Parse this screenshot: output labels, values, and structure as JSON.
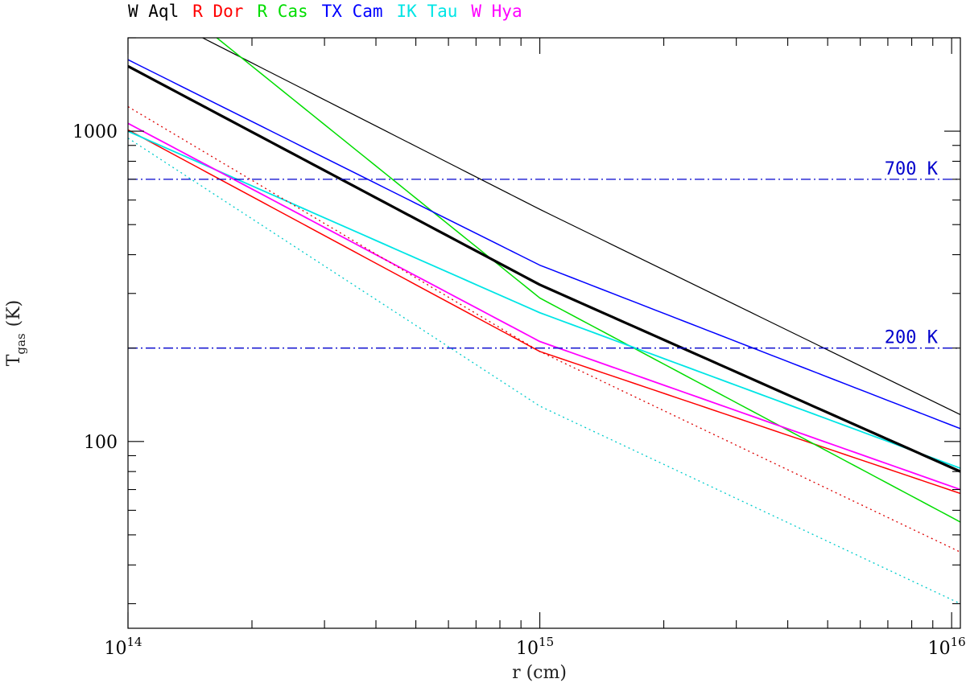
{
  "chart_data": {
    "type": "line",
    "xscale": "log",
    "yscale": "log",
    "xlim": [
      100000000000000.0,
      1.05e+16
    ],
    "ylim": [
      25,
      2000
    ],
    "xlabel": "r (cm)",
    "ylabel": {
      "main": "T",
      "sub": "gas",
      "unit": "(K)"
    },
    "x_ticks": [
      {
        "base": "10",
        "exp": "14",
        "value": 100000000000000.0
      },
      {
        "base": "10",
        "exp": "15",
        "value": 1000000000000000.0
      },
      {
        "base": "10",
        "exp": "16",
        "value": 1e+16
      }
    ],
    "y_ticks": [
      {
        "label": "100",
        "value": 100
      },
      {
        "label": "1000",
        "value": 1000
      }
    ],
    "legend": [
      {
        "label": "W Aql",
        "color": "#000000"
      },
      {
        "label": "R Dor",
        "color": "#ff0000"
      },
      {
        "label": "R Cas",
        "color": "#00dd00"
      },
      {
        "label": "TX Cam",
        "color": "#0000ff"
      },
      {
        "label": "IK Tau",
        "color": "#00e5e5"
      },
      {
        "label": "W Hya",
        "color": "#ff00ff"
      }
    ],
    "reference_lines": [
      {
        "label": "700 K",
        "y": 700,
        "color": "#0000cc",
        "style": "dashdot"
      },
      {
        "label": "200 K",
        "y": 200,
        "color": "#0000cc",
        "style": "dashdot"
      }
    ],
    "series": [
      {
        "legend": "W Aql",
        "color": "#000000",
        "width": 1.2,
        "style": "solid",
        "x": [
          100000000000000.0,
          1000000000000000.0,
          1.05e+16
        ],
        "y": [
          2650,
          560,
          122
        ]
      },
      {
        "legend": "R Dor",
        "color": "#ff0000",
        "width": 1.5,
        "style": "solid",
        "x": [
          100000000000000.0,
          1000000000000000.0,
          1.05e+16
        ],
        "y": [
          1010,
          195,
          68
        ]
      },
      {
        "legend": "R Cas",
        "color": "#00dd00",
        "width": 1.5,
        "style": "solid",
        "x": [
          100000000000000.0,
          1000000000000000.0,
          1.05e+16
        ],
        "y": [
          3400,
          290,
          55
        ]
      },
      {
        "legend": "TX Cam",
        "color": "#0000ff",
        "width": 1.5,
        "style": "solid",
        "x": [
          100000000000000.0,
          1000000000000000.0,
          1.05e+16
        ],
        "y": [
          1700,
          370,
          110
        ]
      },
      {
        "legend": "IK Tau",
        "color": "#00e5e5",
        "width": 1.8,
        "style": "solid",
        "x": [
          100000000000000.0,
          1000000000000000.0,
          1.05e+16
        ],
        "y": [
          1000,
          260,
          82
        ]
      },
      {
        "legend": "W Hya",
        "color": "#ff00ff",
        "width": 1.8,
        "style": "solid",
        "x": [
          100000000000000.0,
          1000000000000000.0,
          1.05e+16
        ],
        "y": [
          1060,
          210,
          70
        ]
      },
      {
        "color": "#000000",
        "width": 3.2,
        "style": "solid",
        "x": [
          100000000000000.0,
          1000000000000000.0,
          1.05e+16
        ],
        "y": [
          1620,
          320,
          80
        ]
      },
      {
        "color": "#dd0000",
        "width": 1.3,
        "style": "dotted",
        "x": [
          100000000000000.0,
          1000000000000000.0,
          1.05e+16
        ],
        "y": [
          1200,
          195,
          44
        ]
      },
      {
        "color": "#00cccc",
        "width": 1.3,
        "style": "dotted",
        "x": [
          100000000000000.0,
          1000000000000000.0,
          1.05e+16
        ],
        "y": [
          950,
          130,
          30
        ]
      }
    ]
  }
}
